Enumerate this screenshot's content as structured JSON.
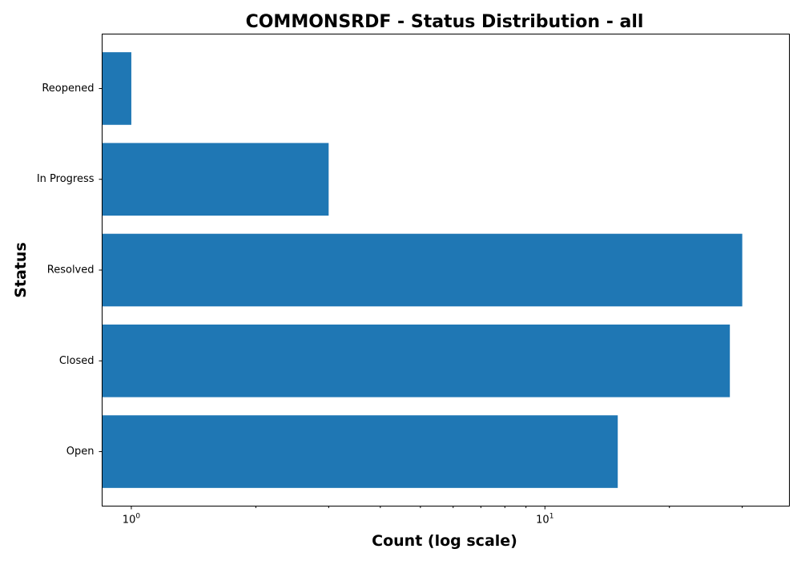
{
  "chart_data": {
    "type": "bar",
    "orientation": "horizontal",
    "title": "COMMONSRDF - Status Distribution - all",
    "xlabel": "Count (log scale)",
    "ylabel": "Status",
    "x_scale": "log",
    "xlim": [
      0.85,
      39
    ],
    "categories": [
      "Open",
      "Closed",
      "Resolved",
      "In Progress",
      "Reopened"
    ],
    "values": [
      15,
      28,
      30,
      3,
      1
    ],
    "major_ticks": [
      {
        "value": 1,
        "base": "10",
        "exp": "0"
      },
      {
        "value": 10,
        "base": "10",
        "exp": "1"
      }
    ],
    "minor_ticks": [
      2,
      3,
      4,
      5,
      6,
      7,
      8,
      9,
      20,
      30
    ],
    "bar_color": "#1f77b4",
    "grid": false,
    "legend": "none"
  }
}
